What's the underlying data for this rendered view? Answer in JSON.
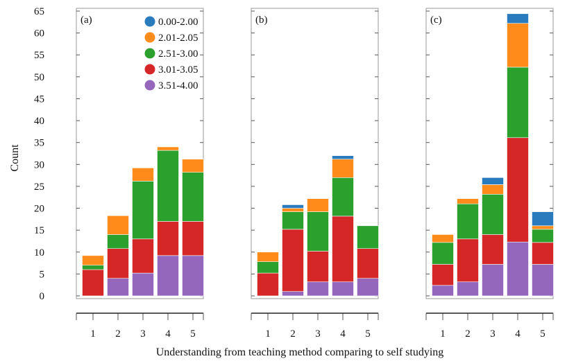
{
  "chart_data": {
    "type": "bar",
    "stacked": true,
    "xlabel": "Understanding from teaching method comparing to self studying",
    "ylabel": "Count",
    "ylim": [
      0,
      65
    ],
    "yticks": [
      0,
      5,
      10,
      15,
      20,
      25,
      30,
      35,
      40,
      45,
      50,
      55,
      60,
      65
    ],
    "categories": [
      "1",
      "2",
      "3",
      "4",
      "5"
    ],
    "legend_position": "top-right of panel (a)",
    "series_colors": {
      "0.00-2.00": "#2a7bbd",
      "2.01-2.05": "#ff8c1a",
      "2.51-3.00": "#2ca02c",
      "3.01-3.05": "#d62728",
      "3.51-4.00": "#9467bd"
    },
    "panels": [
      {
        "label": "(a)",
        "series": [
          {
            "name": "3.51-4.00",
            "values": [
              0,
              4,
              5.2,
              9.2,
              9.2
            ]
          },
          {
            "name": "3.01-3.05",
            "values": [
              6,
              6.8,
              7.8,
              7.8,
              7.8
            ]
          },
          {
            "name": "2.51-3.00",
            "values": [
              1,
              3.2,
              13.2,
              16.2,
              11.2
            ]
          },
          {
            "name": "2.01-2.05",
            "values": [
              2.2,
              4.3,
              3,
              0.8,
              3
            ]
          },
          {
            "name": "0.00-2.00",
            "values": [
              0,
              0,
              0,
              0,
              0
            ]
          }
        ]
      },
      {
        "label": "(b)",
        "series": [
          {
            "name": "3.51-4.00",
            "values": [
              0,
              1,
              3.2,
              3.2,
              4
            ]
          },
          {
            "name": "3.01-3.05",
            "values": [
              5.2,
              14.2,
              7,
              15,
              6.8
            ]
          },
          {
            "name": "2.51-3.00",
            "values": [
              2.6,
              4,
              9,
              8.8,
              5.2
            ]
          },
          {
            "name": "2.01-2.05",
            "values": [
              2.2,
              0.8,
              3,
              4.2,
              0
            ]
          },
          {
            "name": "0.00-2.00",
            "values": [
              0,
              0.8,
              0,
              0.8,
              0
            ]
          }
        ]
      },
      {
        "label": "(c)",
        "series": [
          {
            "name": "3.51-4.00",
            "values": [
              2.4,
              3.2,
              7.2,
              12.3,
              7.2
            ]
          },
          {
            "name": "3.01-3.05",
            "values": [
              4.8,
              9.8,
              6.8,
              23.8,
              5
            ]
          },
          {
            "name": "2.51-3.00",
            "values": [
              5,
              8,
              9.2,
              16.1,
              3
            ]
          },
          {
            "name": "2.01-2.05",
            "values": [
              1.8,
              1.2,
              2.2,
              10,
              0.8
            ]
          },
          {
            "name": "0.00-2.00",
            "values": [
              0,
              0,
              1.6,
              2.2,
              3.2
            ]
          }
        ]
      }
    ]
  }
}
